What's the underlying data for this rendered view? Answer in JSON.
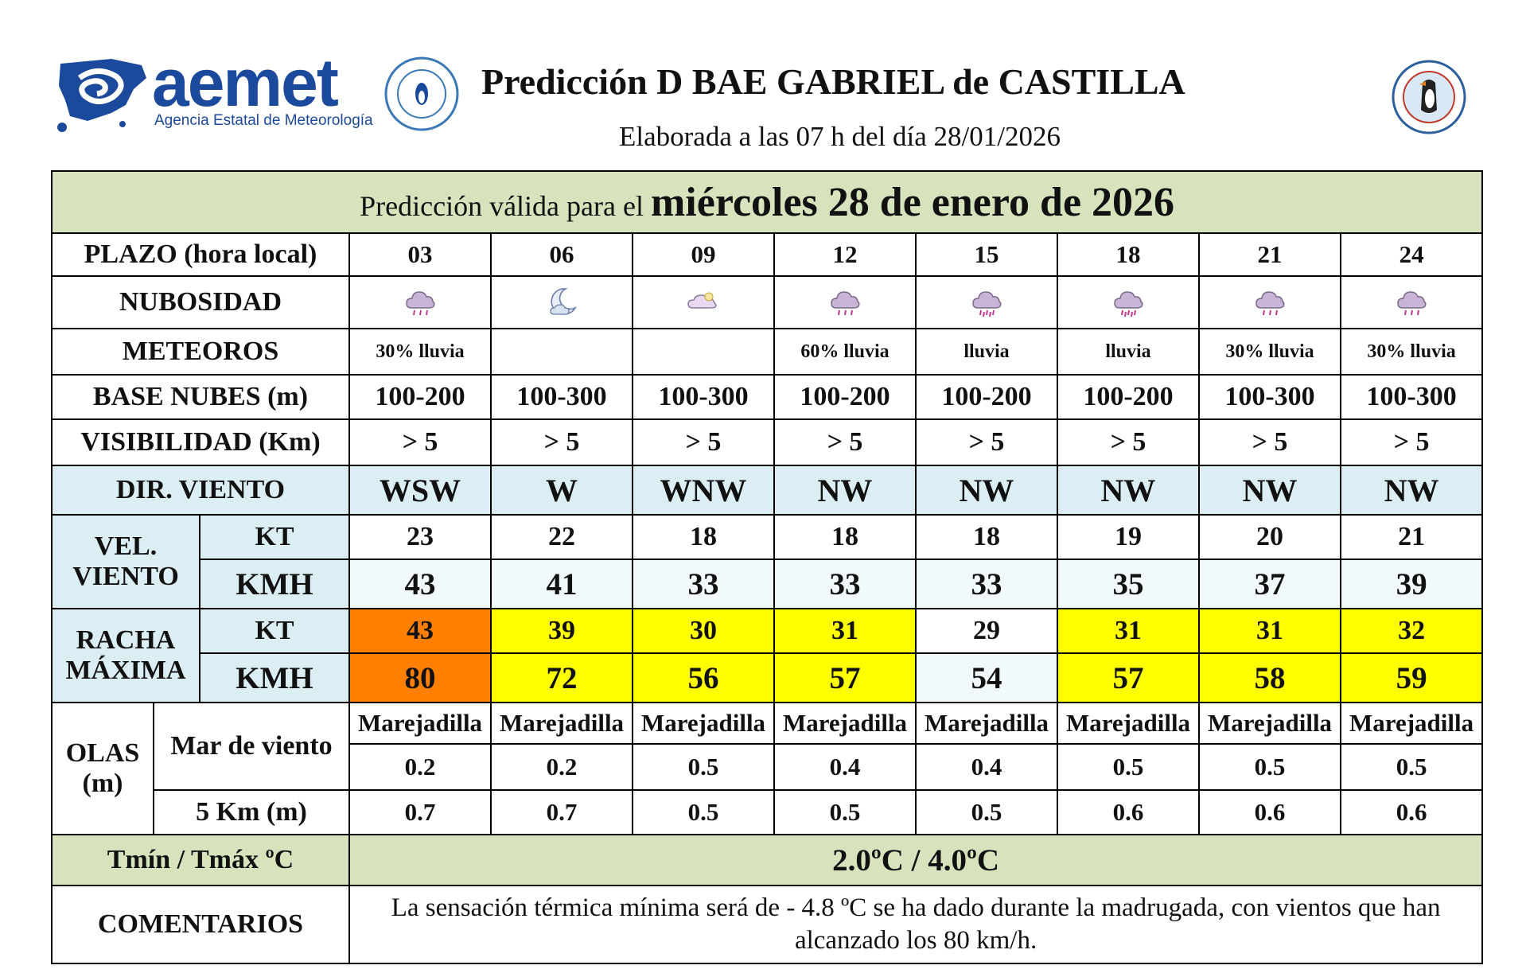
{
  "header": {
    "logo_text": "aemet",
    "logo_subtitle": "Agencia Estatal de Meteorología",
    "title": "Predicción D BAE GABRIEL de CASTILLA",
    "subtitle": "Elaborada a las 07 h del día 28/01/2026"
  },
  "banner": {
    "prefix": "Predicción válida para el",
    "date": "miércoles 28 de enero de 2026"
  },
  "labels": {
    "plazo": "PLAZO (hora local)",
    "nubosidad": "NUBOSIDAD",
    "meteoros": "METEOROS",
    "base_nubes": "BASE NUBES (m)",
    "visibilidad": "VISIBILIDAD (Km)",
    "dir_viento": "DIR. VIENTO",
    "vel_viento_1": "VEL.",
    "vel_viento_2": "VIENTO",
    "racha_1": "RACHA",
    "racha_2": "MÁXIMA",
    "kt": "KT",
    "kmh": "KMH",
    "olas_1": "OLAS",
    "olas_2": "(m)",
    "mar_viento": "Mar de viento",
    "cinco_km": "5 Km (m)",
    "temp": "Tmín / Tmáx ºC",
    "comentarios": "COMENTARIOS"
  },
  "columns": [
    {
      "hour": "03",
      "cloud_icon": "cloud-rain-icon",
      "meteoros": "30% lluvia",
      "base": "100-200",
      "vis": "> 5",
      "dir": "WSW",
      "vel_kt": "23",
      "vel_kmh": "43",
      "racha_kt": "43",
      "racha_kmh": "80",
      "racha_color": "#ff8000",
      "mar": "Marejadilla",
      "mar_val": "0.2",
      "cinco": "0.7"
    },
    {
      "hour": "06",
      "cloud_icon": "moon-cloud-icon",
      "meteoros": "",
      "base": "100-300",
      "vis": "> 5",
      "dir": "W",
      "vel_kt": "22",
      "vel_kmh": "41",
      "racha_kt": "39",
      "racha_kmh": "72",
      "racha_color": "#ffff00",
      "mar": "Marejadilla",
      "mar_val": "0.2",
      "cinco": "0.7"
    },
    {
      "hour": "09",
      "cloud_icon": "cloud-icon",
      "meteoros": "",
      "base": "100-300",
      "vis": "> 5",
      "dir": "WNW",
      "vel_kt": "18",
      "vel_kmh": "33",
      "racha_kt": "30",
      "racha_kmh": "56",
      "racha_color": "#ffff00",
      "mar": "Marejadilla",
      "mar_val": "0.5",
      "cinco": "0.5"
    },
    {
      "hour": "12",
      "cloud_icon": "cloud-rain-icon",
      "meteoros": "60% lluvia",
      "base": "100-200",
      "vis": "> 5",
      "dir": "NW",
      "vel_kt": "18",
      "vel_kmh": "33",
      "racha_kt": "31",
      "racha_kmh": "57",
      "racha_color": "#ffff00",
      "mar": "Marejadilla",
      "mar_val": "0.4",
      "cinco": "0.5"
    },
    {
      "hour": "15",
      "cloud_icon": "cloud-heavy-rain-icon",
      "meteoros": "lluvia",
      "base": "100-200",
      "vis": "> 5",
      "dir": "NW",
      "vel_kt": "18",
      "vel_kmh": "33",
      "racha_kt": "29",
      "racha_kmh": "54",
      "racha_color": "#ffffff",
      "mar": "Marejadilla",
      "mar_val": "0.4",
      "cinco": "0.5"
    },
    {
      "hour": "18",
      "cloud_icon": "cloud-heavy-rain-icon",
      "meteoros": "lluvia",
      "base": "100-200",
      "vis": "> 5",
      "dir": "NW",
      "vel_kt": "19",
      "vel_kmh": "35",
      "racha_kt": "31",
      "racha_kmh": "57",
      "racha_color": "#ffff00",
      "mar": "Marejadilla",
      "mar_val": "0.5",
      "cinco": "0.6"
    },
    {
      "hour": "21",
      "cloud_icon": "cloud-rain-icon",
      "meteoros": "30% lluvia",
      "base": "100-300",
      "vis": "> 5",
      "dir": "NW",
      "vel_kt": "20",
      "vel_kmh": "37",
      "racha_kt": "31",
      "racha_kmh": "58",
      "racha_color": "#ffff00",
      "mar": "Marejadilla",
      "mar_val": "0.5",
      "cinco": "0.6"
    },
    {
      "hour": "24",
      "cloud_icon": "cloud-rain-icon",
      "meteoros": "30% lluvia",
      "base": "100-300",
      "vis": "> 5",
      "dir": "NW",
      "vel_kt": "21",
      "vel_kmh": "39",
      "racha_kt": "32",
      "racha_kmh": "59",
      "racha_color": "#ffff00",
      "mar": "Marejadilla",
      "mar_val": "0.5",
      "cinco": "0.6"
    }
  ],
  "temperature": "2.0ºC / 4.0ºC",
  "comment": "La sensación térmica mínima será de - 4.8 ºC se ha dado durante la madrugada, con vientos que han alcanzado los 80 km/h."
}
